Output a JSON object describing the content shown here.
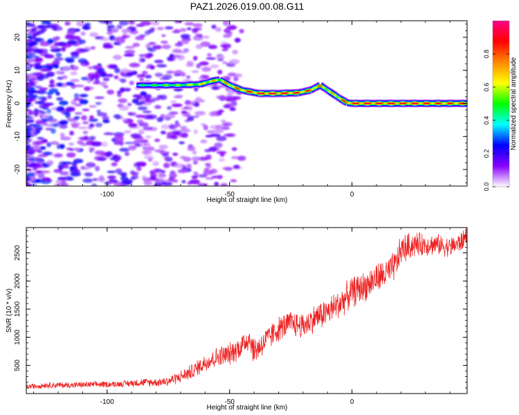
{
  "figure": {
    "title": "PAZ1.2026.019.00.08.G11"
  },
  "chart_data": [
    {
      "type": "heatmap",
      "title": "PAZ1.2026.019.00.08.G11",
      "xlabel": "Height of straight line (km)",
      "ylabel": "Frequency (Hz)",
      "xlim": [
        -133,
        47
      ],
      "ylim": [
        -25,
        25
      ],
      "x_ticks": [
        -100,
        -50,
        0
      ],
      "x_tick_labels": [
        "-100",
        "-50",
        "0"
      ],
      "y_ticks": [
        -20,
        -10,
        0,
        10,
        20
      ],
      "y_tick_labels": [
        "-20",
        "-10",
        "0",
        "10",
        "20"
      ],
      "ridge": {
        "x": [
          -88,
          -80,
          -70,
          -62,
          -57,
          -54,
          -50,
          -45,
          -38,
          -30,
          -22,
          -17,
          -13,
          -9,
          -5,
          -2,
          0,
          20,
          40,
          47
        ],
        "frequency": [
          5.5,
          5.5,
          5.5,
          5.8,
          6.8,
          7.2,
          5.5,
          4.0,
          3.0,
          3.0,
          3.2,
          4.0,
          5.5,
          3.5,
          1.5,
          0.2,
          0.0,
          0.0,
          0.0,
          0.0
        ],
        "amplitude": [
          0.45,
          0.55,
          0.6,
          0.7,
          0.75,
          0.7,
          0.8,
          0.85,
          0.95,
          0.95,
          0.9,
          0.85,
          0.8,
          0.7,
          0.8,
          0.9,
          0.95,
          0.95,
          0.9,
          0.9
        ]
      },
      "noise_region": {
        "x_range": [
          -133,
          -45
        ],
        "amplitude_range": [
          0.05,
          0.3
        ]
      },
      "colorbar": {
        "label": "Normalized spectral amplitude",
        "range": [
          0.0,
          1.0
        ],
        "ticks": [
          0.0,
          0.2,
          0.4,
          0.6,
          0.8
        ],
        "tick_labels": [
          "0.0",
          "0.2",
          "0.4",
          "0.6",
          "0.8"
        ],
        "colormap": [
          "#ffffff",
          "#8800ff",
          "#0000ff",
          "#00ffff",
          "#00ff00",
          "#ffff00",
          "#ff8800",
          "#ff0000",
          "#ff0088"
        ]
      }
    },
    {
      "type": "line",
      "xlabel": "Height of straight line (km)",
      "ylabel": "SNR (10 * v/v)",
      "xlim": [
        -133,
        47
      ],
      "ylim": [
        0,
        2950
      ],
      "x_ticks": [
        -100,
        -50,
        0
      ],
      "x_tick_labels": [
        "-100",
        "-50",
        "0"
      ],
      "y_ticks": [
        500,
        1000,
        1500,
        2000,
        2500
      ],
      "y_tick_labels": [
        "500",
        "1000",
        "1500",
        "2000",
        "2500"
      ],
      "line_color": "#ee2222",
      "series": [
        {
          "name": "SNR",
          "x": [
            -133,
            -125,
            -115,
            -105,
            -95,
            -85,
            -80,
            -75,
            -70,
            -65,
            -60,
            -55,
            -50,
            -45,
            -42,
            -40,
            -35,
            -30,
            -25,
            -20,
            -15,
            -10,
            -5,
            0,
            5,
            10,
            15,
            18,
            20,
            25,
            30,
            35,
            40,
            45,
            47
          ],
          "values": [
            120,
            150,
            150,
            160,
            170,
            200,
            200,
            220,
            300,
            400,
            550,
            650,
            700,
            850,
            1000,
            750,
            950,
            1150,
            1250,
            1200,
            1350,
            1450,
            1600,
            1800,
            1900,
            2050,
            2150,
            2300,
            2550,
            2650,
            2650,
            2650,
            2600,
            2700,
            2850
          ],
          "noise_amplitude": [
            50,
            60,
            60,
            60,
            60,
            80,
            80,
            100,
            120,
            150,
            180,
            200,
            220,
            240,
            260,
            280,
            250,
            250,
            250,
            260,
            270,
            280,
            290,
            300,
            300,
            300,
            300,
            300,
            300,
            250,
            220,
            200,
            200,
            200,
            200
          ]
        }
      ]
    }
  ]
}
